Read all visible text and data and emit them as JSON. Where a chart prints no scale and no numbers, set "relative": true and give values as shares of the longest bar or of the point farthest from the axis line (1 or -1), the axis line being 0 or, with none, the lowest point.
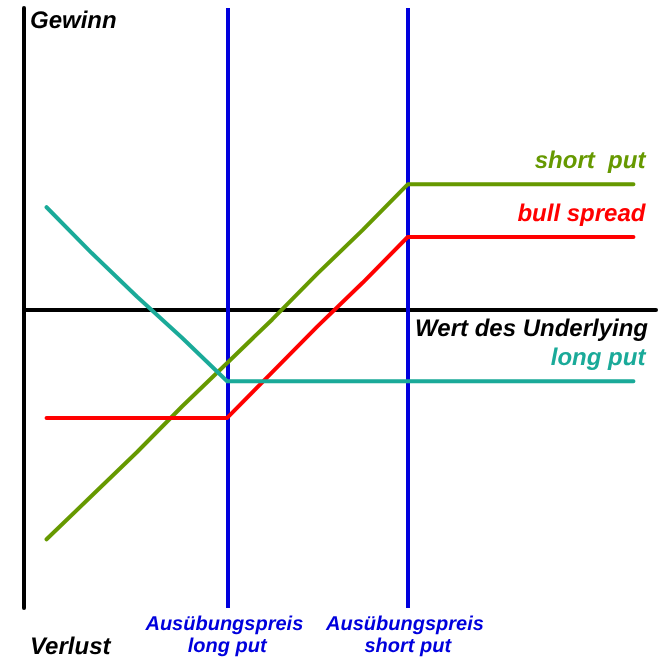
{
  "chart_data": {
    "type": "line",
    "relative": true,
    "xlabel": "Wert des Underlying",
    "annotations": [
      "Gewinn",
      "Verlust"
    ],
    "categories": [
      null,
      null,
      null,
      null,
      "Ausübungspreis long put",
      null,
      null,
      null,
      "Ausübungspreis short put",
      null,
      null,
      null,
      null,
      null
    ],
    "series": [
      {
        "name": "short  put",
        "color": "#669900",
        "values": [
          -1,
          -0.81,
          -0.62,
          -0.42,
          -0.23,
          -0.04,
          0.16,
          0.35,
          0.55,
          0.55,
          0.55,
          0.55,
          0.55,
          0.55
        ]
      },
      {
        "name": "bull spread",
        "color": "#ff0000",
        "values": [
          -0.47,
          -0.47,
          -0.47,
          -0.47,
          -0.47,
          -0.27,
          -0.07,
          0.12,
          0.32,
          0.32,
          0.32,
          0.32,
          0.32,
          0.32
        ]
      },
      {
        "name": "long put",
        "color": "#1aaa99",
        "values": [
          0.45,
          0.25,
          0.06,
          -0.12,
          -0.31,
          -0.31,
          -0.31,
          -0.31,
          -0.31,
          -0.31,
          -0.31,
          -0.31,
          -0.31,
          -0.31
        ]
      }
    ],
    "ref_lines": [
      {
        "axis": "x",
        "value": "Ausübungspreis long put",
        "color": "#0000dd"
      },
      {
        "axis": "x",
        "value": "Ausübungspreis short put",
        "color": "#0000dd"
      }
    ],
    "grid": false,
    "legend": false,
    "marker": "none",
    "line_style": "solid"
  }
}
